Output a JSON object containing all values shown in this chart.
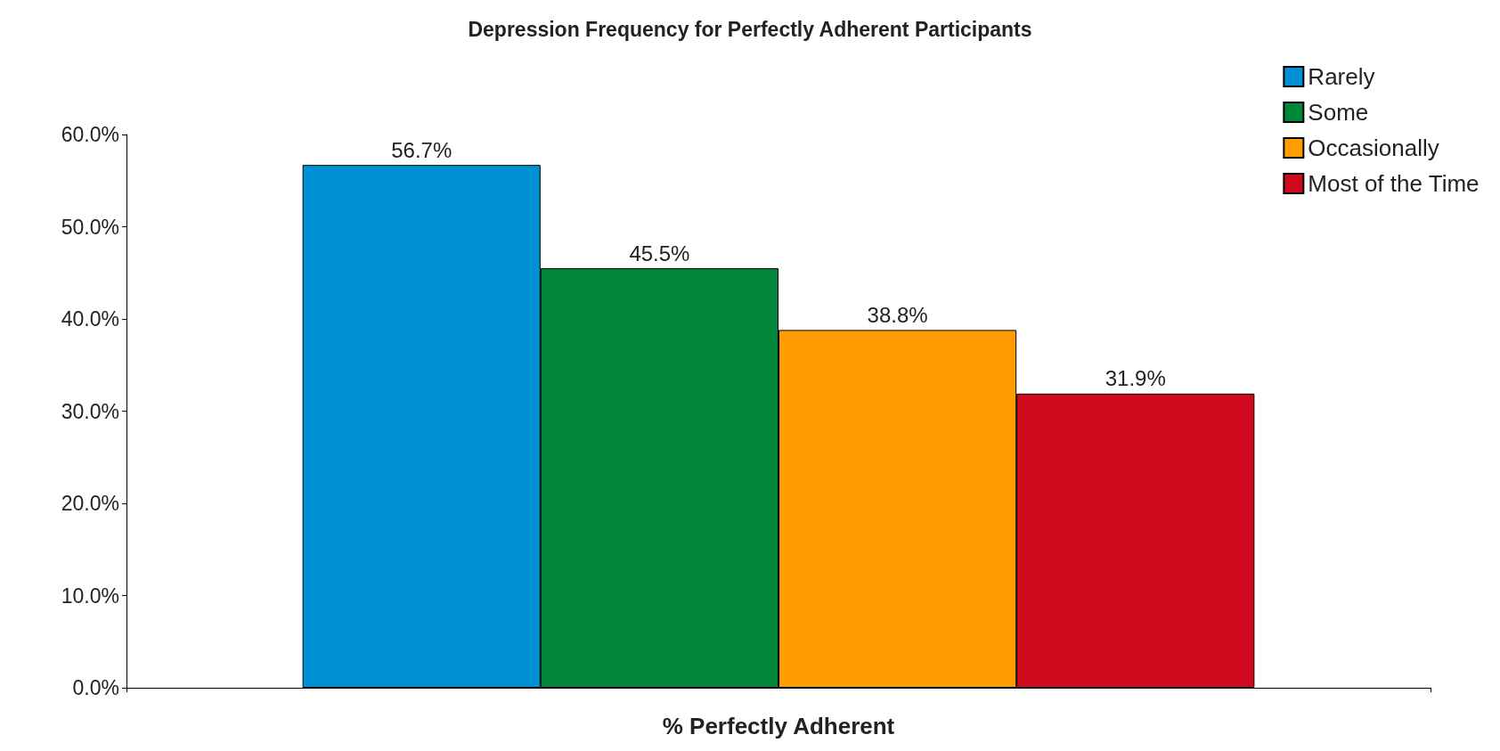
{
  "chart_data": {
    "type": "bar",
    "title": "Depression Frequency for Perfectly Adherent Participants",
    "xlabel": "% Perfectly Adherent",
    "categories": [
      null
    ],
    "series": [
      {
        "name": "Rarely",
        "color": "#0091d4",
        "values": [
          56.7
        ],
        "value_labels": [
          "56.7%"
        ]
      },
      {
        "name": "Some",
        "color": "#00873a",
        "values": [
          45.5
        ],
        "value_labels": [
          "45.5%"
        ]
      },
      {
        "name": "Occasionally",
        "color": "#ff9c00",
        "values": [
          38.8
        ],
        "value_labels": [
          "38.8%"
        ]
      },
      {
        "name": "Most of the Time",
        "color": "#d0091f",
        "values": [
          31.9
        ],
        "value_labels": [
          "31.9%"
        ]
      }
    ],
    "ylim": [
      0,
      60
    ],
    "yticks": [
      {
        "value": 0,
        "label": "0.0%"
      },
      {
        "value": 10,
        "label": "10.0%"
      },
      {
        "value": 20,
        "label": "20.0%"
      },
      {
        "value": 30,
        "label": "30.0%"
      },
      {
        "value": 40,
        "label": "40.0%"
      },
      {
        "value": 50,
        "label": "50.0%"
      },
      {
        "value": 60,
        "label": "60.0%"
      }
    ],
    "grid": false,
    "legend": "top right"
  }
}
